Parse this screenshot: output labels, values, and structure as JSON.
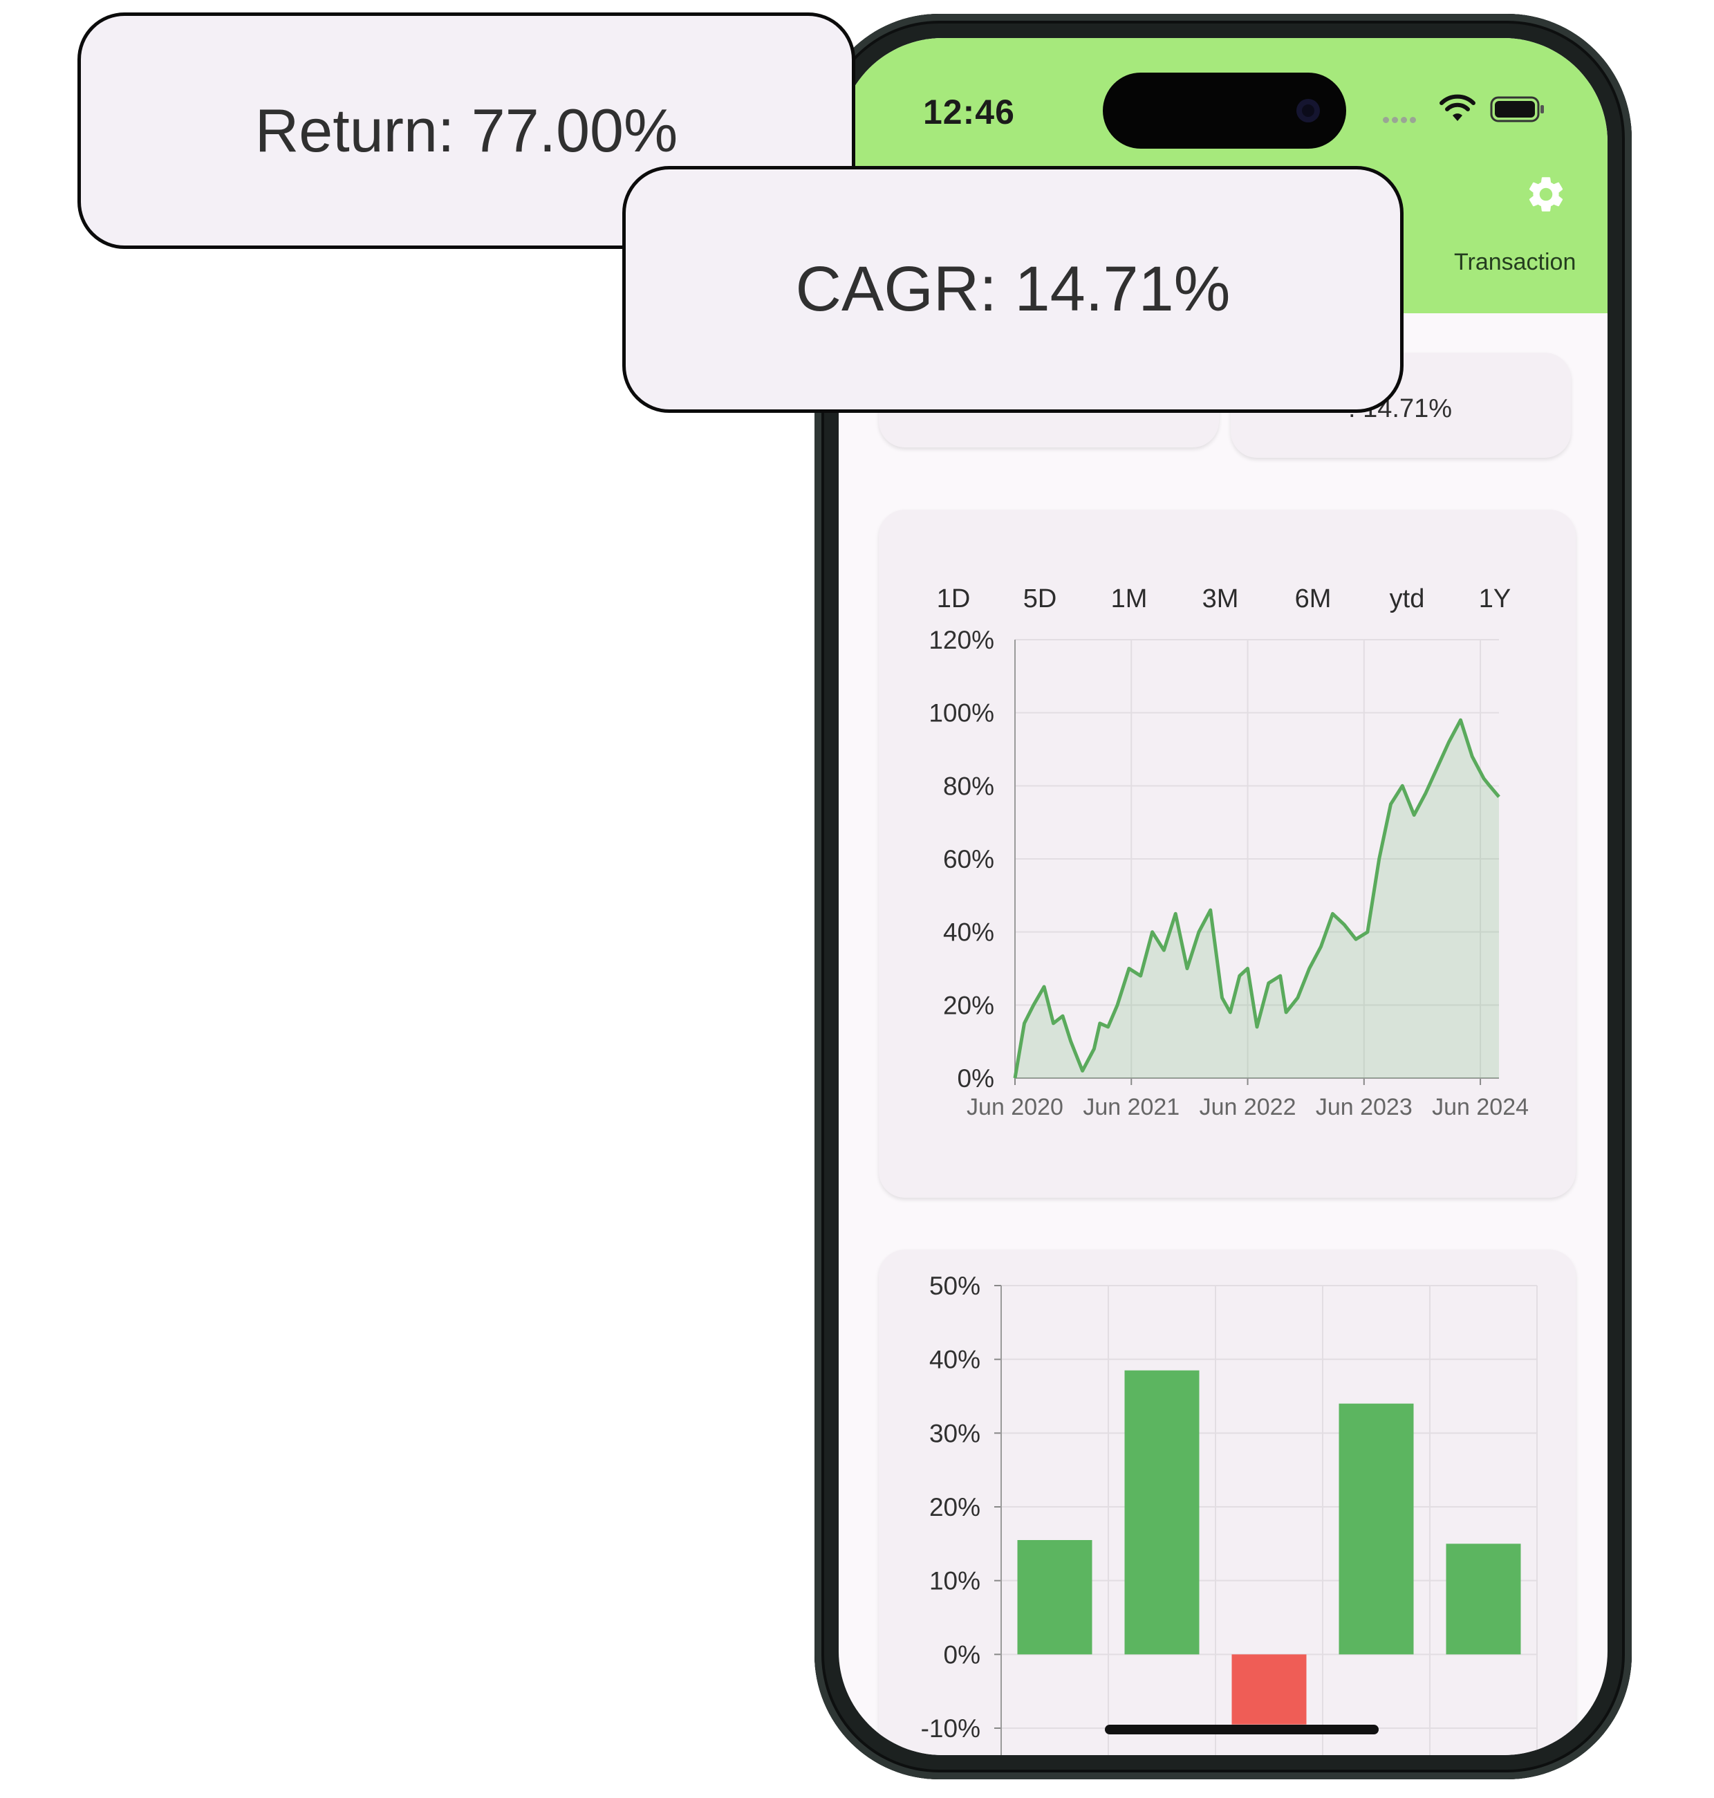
{
  "status_bar": {
    "time": "12:46"
  },
  "header": {
    "tab_transactions": "Transaction"
  },
  "stub_cards": {
    "cagr_partial": ": 14.71%"
  },
  "callouts": {
    "return": "Return: 77.00%",
    "cagr": "CAGR: 14.71%"
  },
  "ranges": [
    "1D",
    "5D",
    "1M",
    "3M",
    "6M",
    "ytd",
    "1Y"
  ],
  "colors": {
    "header": "#a6e97c",
    "positive": "#5cb560",
    "negative": "#ef5d56",
    "line": "#5aaa5c"
  },
  "icons": {
    "settings": "gear-icon",
    "wifi": "wifi-icon",
    "battery": "battery-icon"
  },
  "chart_data": [
    {
      "type": "area",
      "x_ticks": [
        "Jun 2020",
        "Jun 2021",
        "Jun 2022",
        "Jun 2023",
        "Jun 2024"
      ],
      "y_ticks": [
        "120%",
        "100%",
        "80%",
        "60%",
        "40%",
        "20%",
        "0%"
      ],
      "ylim": [
        0,
        120
      ],
      "xlim": [
        2020.42,
        2024.58
      ],
      "grid": true,
      "series": [
        {
          "x": [
            2020.42,
            2020.5,
            2020.58,
            2020.67,
            2020.75,
            2020.83,
            2020.9,
            2021.0,
            2021.1,
            2021.15,
            2021.22,
            2021.3,
            2021.4,
            2021.5,
            2021.6,
            2021.7,
            2021.8,
            2021.9,
            2022.0,
            2022.1,
            2022.2,
            2022.27,
            2022.35,
            2022.42,
            2022.5,
            2022.6,
            2022.7,
            2022.75,
            2022.85,
            2022.95,
            2023.05,
            2023.15,
            2023.25,
            2023.35,
            2023.45,
            2023.55,
            2023.65,
            2023.75,
            2023.85,
            2023.95,
            2024.05,
            2024.15,
            2024.25,
            2024.35,
            2024.45,
            2024.5,
            2024.58
          ],
          "y": [
            0,
            15,
            20,
            25,
            15,
            17,
            10,
            2,
            8,
            15,
            14,
            20,
            30,
            28,
            40,
            35,
            45,
            30,
            40,
            46,
            22,
            18,
            28,
            30,
            14,
            26,
            28,
            18,
            22,
            30,
            36,
            45,
            42,
            38,
            40,
            60,
            75,
            80,
            72,
            78,
            85,
            92,
            98,
            88,
            82,
            80,
            77
          ]
        }
      ]
    },
    {
      "type": "bar",
      "categories": [
        "",
        "",
        "",
        "",
        ""
      ],
      "values": [
        15.5,
        38.5,
        -9.5,
        34,
        15
      ],
      "y_ticks": [
        "50%",
        "40%",
        "30%",
        "20%",
        "10%",
        "0%",
        "-10%"
      ],
      "ylim": [
        -10,
        50
      ],
      "grid": true
    }
  ]
}
